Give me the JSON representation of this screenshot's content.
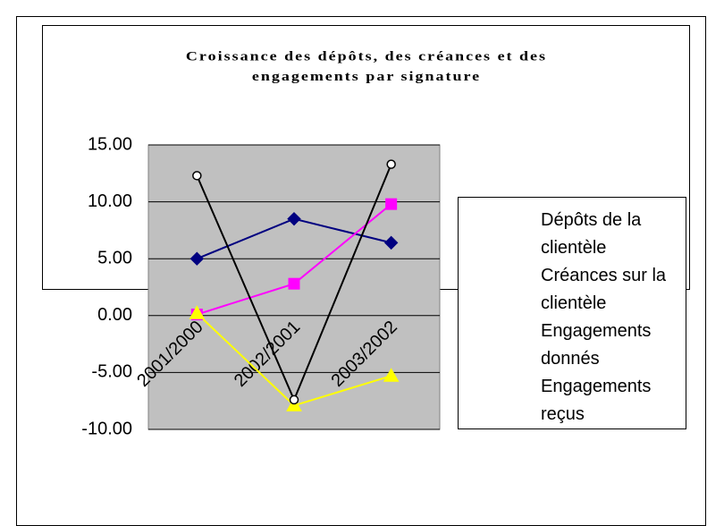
{
  "chart_data": {
    "type": "line",
    "title": "Croissance des dépôts, des créances et des engagements par signature",
    "categories": [
      "2001/2000",
      "2002/2001",
      "2003/2002"
    ],
    "series": [
      {
        "name": "Dépôts de la clientèle",
        "color": "#000080",
        "marker": "diamond",
        "values": [
          5.0,
          8.5,
          6.4
        ]
      },
      {
        "name": "Créances sur la clientèle",
        "color": "#ff00ff",
        "marker": "square",
        "values": [
          0.1,
          2.8,
          9.8
        ]
      },
      {
        "name": "Engagements donnés",
        "color": "#ffff00",
        "marker": "triangle",
        "values": [
          0.2,
          -7.9,
          -5.3
        ]
      },
      {
        "name": "Engagements reçus",
        "color": "#000000",
        "marker": "circle",
        "values": [
          12.3,
          -7.4,
          13.3
        ]
      }
    ],
    "ylim": [
      -10,
      15
    ],
    "yticks": [
      {
        "value": -10,
        "label": "-10.00"
      },
      {
        "value": -5,
        "label": "-5.00"
      },
      {
        "value": 0,
        "label": "0.00"
      },
      {
        "value": 5,
        "label": "5.00"
      },
      {
        "value": 10,
        "label": "10.00"
      },
      {
        "value": 15,
        "label": "15.00"
      }
    ],
    "grid": true,
    "legend": "right"
  }
}
